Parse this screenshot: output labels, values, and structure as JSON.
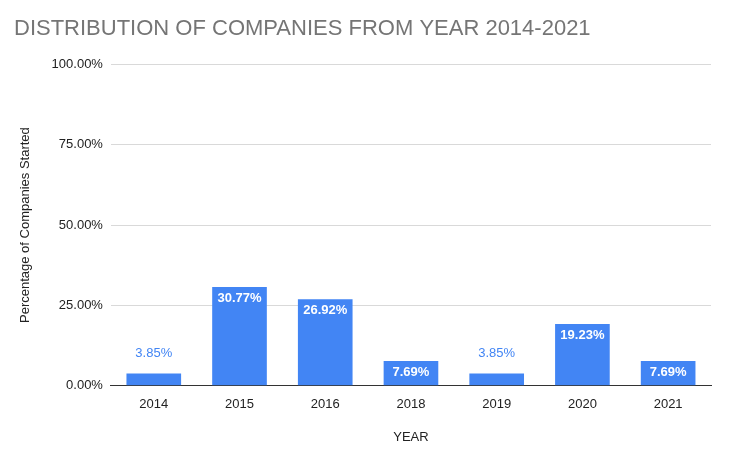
{
  "chart_data": {
    "type": "bar",
    "title": "DISTRIBUTION OF COMPANIES FROM YEAR 2014-2021",
    "x_label": "YEAR",
    "y_label": "Percentage of Companies Started",
    "categories": [
      "2014",
      "2015",
      "2016",
      "2018",
      "2019",
      "2020",
      "2021"
    ],
    "values": [
      3.85,
      30.77,
      26.92,
      7.69,
      3.85,
      19.23,
      7.69
    ],
    "value_labels": [
      "3.85%",
      "30.77%",
      "26.92%",
      "7.69%",
      "3.85%",
      "19.23%",
      "7.69%"
    ],
    "color": "#4285f4",
    "ylim": [
      0,
      100
    ],
    "yticks": [
      {
        "value": 0,
        "label": "0.00%"
      },
      {
        "value": 25,
        "label": "25.00%"
      },
      {
        "value": 50,
        "label": "50.00%"
      },
      {
        "value": 75,
        "label": "75.00%"
      },
      {
        "value": 100,
        "label": "100.00%"
      }
    ],
    "grid": true,
    "data_labels": true
  }
}
